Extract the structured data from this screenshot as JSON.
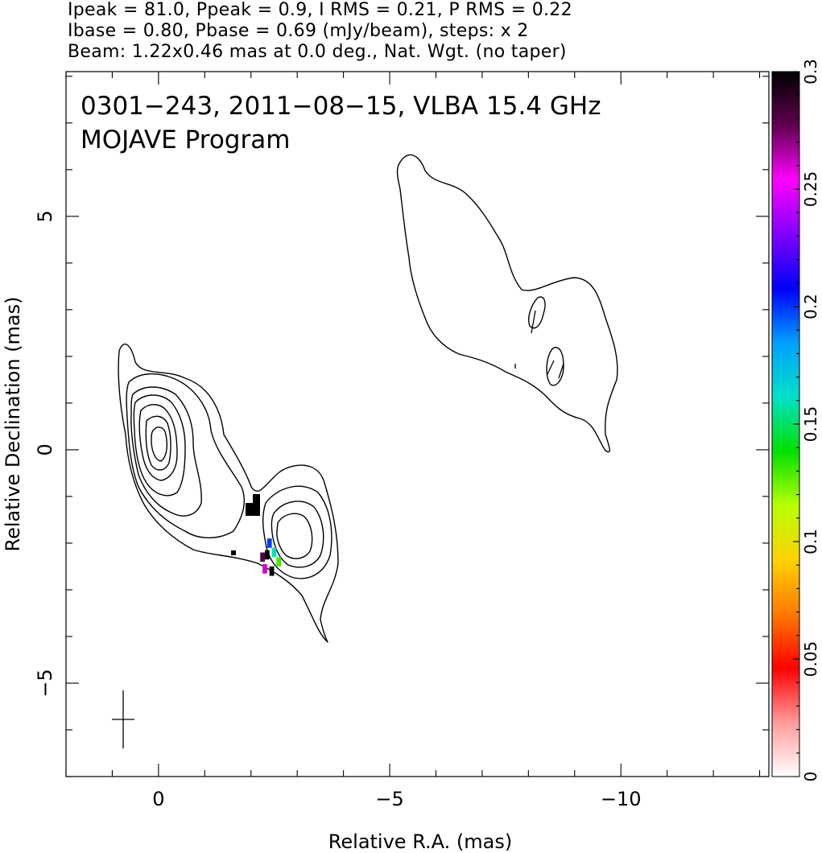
{
  "header": {
    "line1": "Ipeak = 81.0, Ppeak = 0.9, I RMS = 0.21, P RMS = 0.22",
    "line2": "Ibase = 0.80, Pbase = 0.69 (mJy/beam), steps: x 2",
    "line3": "Beam: 1.22x0.46 mas at 0.0 deg., Nat. Wgt. (no taper)"
  },
  "chart_data": {
    "type": "contour",
    "title": "0301−243, 2011−08−15, VLBA 15.4 GHz",
    "subtitle": "MOJAVE Program",
    "xlabel": "Relative R.A. (mas)",
    "ylabel": "Relative Declination (mas)",
    "xlim": [
      2.0,
      -13.2
    ],
    "ylim": [
      -7.0,
      8.1
    ],
    "x_reversed": true,
    "x_ticks": [
      0,
      -5,
      -10
    ],
    "x_tick_labels": [
      "0",
      "−5",
      "−10"
    ],
    "y_ticks": [
      -5,
      0,
      5
    ],
    "y_tick_labels": [
      "−5",
      "0",
      "5"
    ],
    "grid": false,
    "contour_levels_mJy_per_beam": [
      0.8,
      1.6,
      3.2,
      6.4,
      12.8,
      25.6,
      51.2
    ],
    "peak_components": [
      {
        "x": 0.0,
        "y": 0.1
      },
      {
        "x": -2.8,
        "y": -1.8
      }
    ],
    "polarization_pixels": [
      {
        "x": -2.25,
        "y": -2.3,
        "value": 0.28
      },
      {
        "x": -2.35,
        "y": -2.25,
        "value": 0.3
      },
      {
        "x": -2.4,
        "y": -2.0,
        "value": 0.2
      },
      {
        "x": -2.5,
        "y": -2.2,
        "value": 0.16
      },
      {
        "x": -2.6,
        "y": -2.4,
        "value": 0.13
      },
      {
        "x": -2.3,
        "y": -2.55,
        "value": 0.26
      },
      {
        "x": -2.45,
        "y": -2.6,
        "value": 0.3
      }
    ],
    "beam": {
      "major_mas": 1.22,
      "minor_mas": 0.46,
      "pa_deg": 0.0
    },
    "colorbar": {
      "min": 0,
      "max": 0.3,
      "ticks": [
        0,
        0.05,
        0.1,
        0.15,
        0.2,
        0.25,
        0.3
      ],
      "tick_labels": [
        "0",
        "0.05",
        "0.1",
        "0.15",
        "0.2",
        "0.25",
        "0.3"
      ],
      "stops": [
        "#ffffff",
        "#ff9a9a",
        "#ff0000",
        "#ff7a00",
        "#ffd200",
        "#b8ff00",
        "#00e000",
        "#00e0c8",
        "#00a0ff",
        "#0000ff",
        "#8000ff",
        "#ff00ff",
        "#600050",
        "#000000"
      ]
    }
  }
}
